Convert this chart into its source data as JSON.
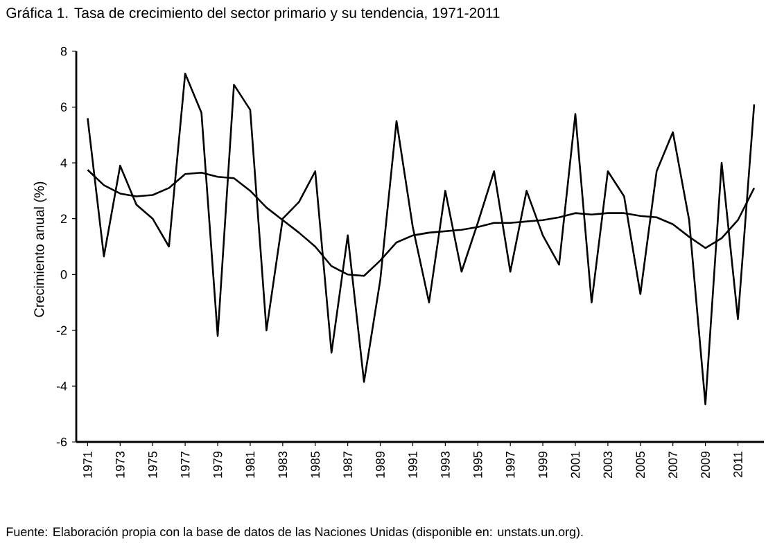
{
  "chart_data": {
    "type": "line",
    "title": "Gráfica 1. Tasa de crecimiento del sector primario y su tendencia, 1971-2011",
    "ylabel": "Crecimiento anual (%)",
    "annotations": [
      "Fuente: Elaboración propia con la base de datos de las Naciones Unidas (disponible en: unstats.un.org)."
    ],
    "categories": [
      "1971",
      null,
      "1973",
      null,
      "1975",
      null,
      "1977",
      null,
      "1979",
      null,
      "1981",
      null,
      "1983",
      null,
      "1985",
      null,
      "1987",
      null,
      "1989",
      null,
      "1991",
      null,
      "1993",
      null,
      "1995",
      null,
      "1997",
      null,
      "1999",
      null,
      "2001",
      null,
      "2003",
      null,
      "2005",
      null,
      "2007",
      null,
      "2009",
      null,
      "2011",
      null
    ],
    "series": [
      {
        "color": "#000000",
        "values": [
          5.6,
          0.65,
          3.9,
          2.5,
          2.0,
          1.0,
          7.2,
          5.8,
          -2.2,
          6.8,
          5.9,
          -2.0,
          2.0,
          2.6,
          3.7,
          -2.8,
          1.4,
          -3.85,
          -0.2,
          5.5,
          1.7,
          -1.0,
          3.0,
          0.1,
          1.85,
          3.7,
          0.1,
          3.0,
          1.4,
          0.35,
          5.75,
          -1.0,
          3.7,
          2.8,
          -0.7,
          3.7,
          5.1,
          1.95,
          -4.65,
          4.0,
          -1.6,
          6.1
        ]
      },
      {
        "color": "#000000",
        "values": [
          3.75,
          3.2,
          2.9,
          2.8,
          2.85,
          3.1,
          3.6,
          3.65,
          3.5,
          3.45,
          3.0,
          2.4,
          1.95,
          1.5,
          1.0,
          0.3,
          0.0,
          -0.05,
          0.5,
          1.15,
          1.4,
          1.5,
          1.55,
          1.6,
          1.7,
          1.85,
          1.85,
          1.9,
          1.95,
          2.05,
          2.2,
          2.15,
          2.2,
          2.2,
          2.1,
          2.05,
          1.8,
          1.35,
          0.95,
          1.3,
          1.95,
          3.1
        ]
      }
    ],
    "ylim": [
      -6,
      8
    ],
    "yticks": [
      -6,
      -4,
      -2,
      0,
      2,
      4,
      6,
      8
    ],
    "grid": false,
    "marker": "none",
    "line_style": "solid"
  }
}
